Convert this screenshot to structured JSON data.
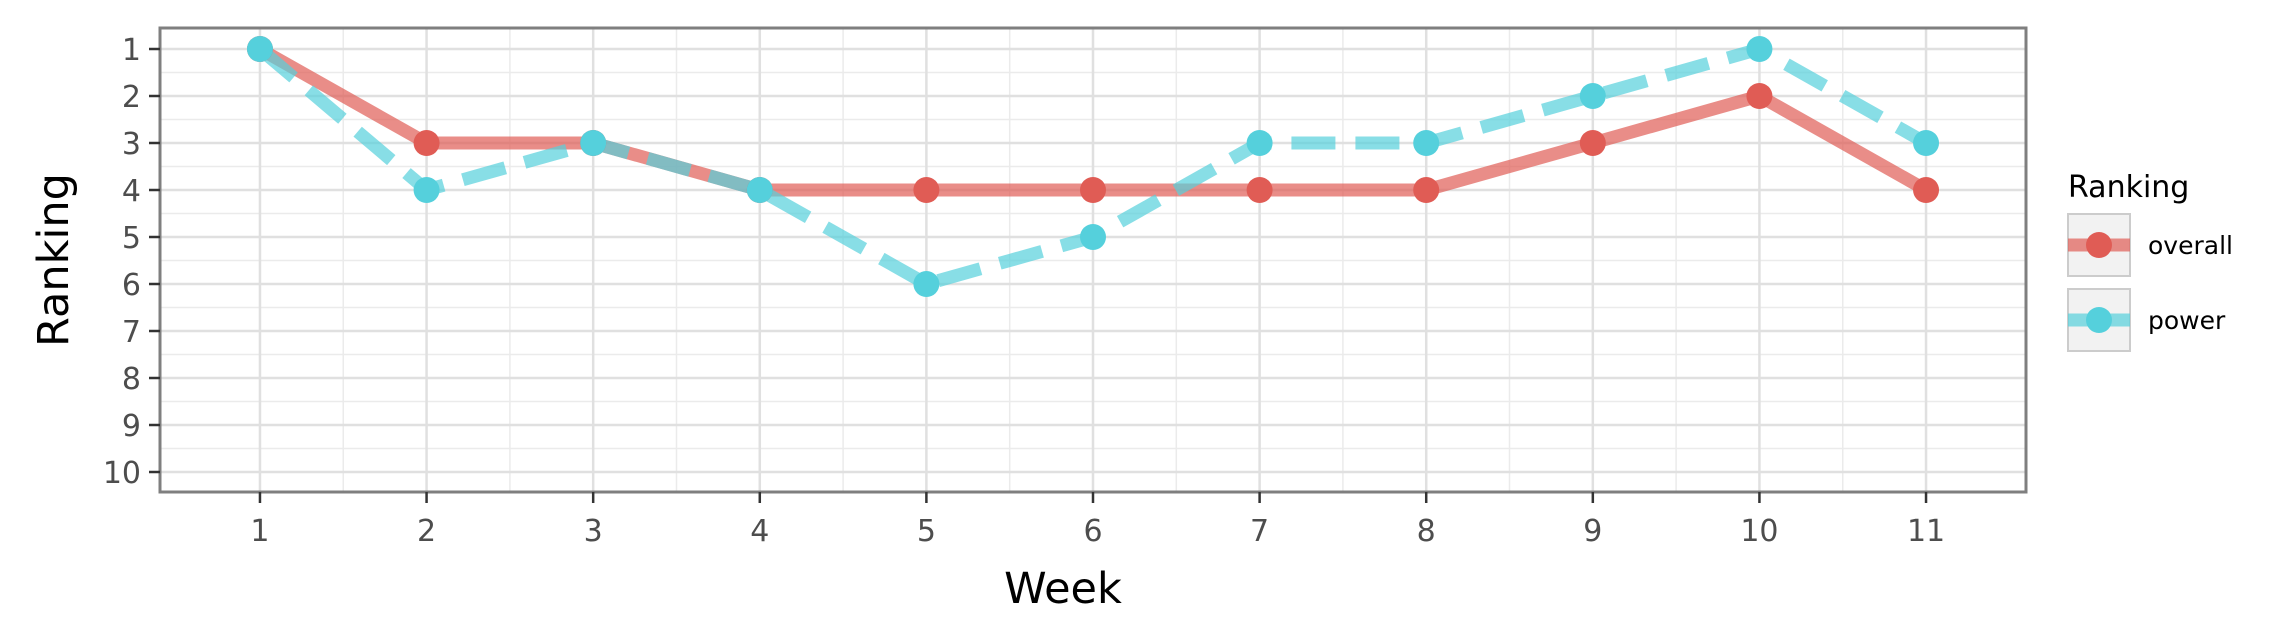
{
  "chart_data": {
    "type": "line",
    "title": "",
    "xlabel": "Week",
    "ylabel": "Ranking",
    "x": [
      1,
      2,
      3,
      4,
      5,
      6,
      7,
      8,
      9,
      10,
      11
    ],
    "x_tick_labels": [
      "1",
      "2",
      "3",
      "4",
      "5",
      "6",
      "7",
      "8",
      "9",
      "10",
      "11"
    ],
    "y_tick_labels": [
      "1",
      "2",
      "3",
      "4",
      "5",
      "6",
      "7",
      "8",
      "9",
      "10"
    ],
    "xlim": [
      0.4,
      11.6
    ],
    "ylim": [
      1,
      10
    ],
    "y_reversed": true,
    "grid": true,
    "legend": {
      "title": "Ranking",
      "placement": "right"
    },
    "series": [
      {
        "name": "overall",
        "values": [
          1,
          3,
          3,
          4,
          4,
          4,
          4,
          4,
          3,
          2,
          4
        ],
        "color": "#e05c55",
        "line_style": "solid"
      },
      {
        "name": "power",
        "values": [
          1,
          4,
          3,
          4,
          6,
          5,
          3,
          3,
          2,
          1,
          3
        ],
        "color": "#55d0dc",
        "line_style": "dashed"
      }
    ]
  }
}
